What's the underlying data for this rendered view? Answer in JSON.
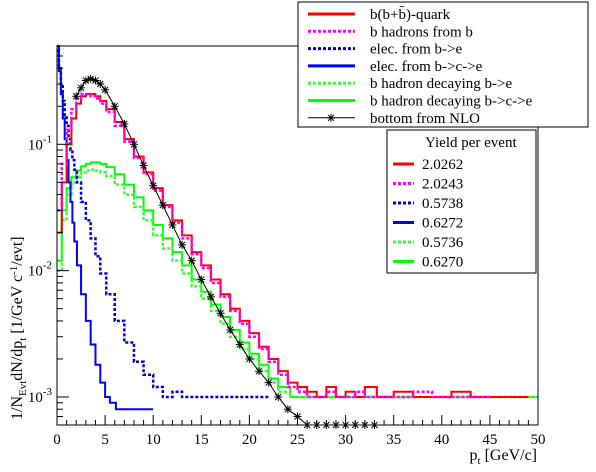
{
  "chart_data": {
    "type": "line",
    "xlabel": "p_t [GeV/c]",
    "ylabel": "1/N_Evt dN/dp_t [1/GeV c^-1/evt]",
    "xlim": [
      0,
      50
    ],
    "ylim": [
      0.0006,
      0.6
    ],
    "y_scale": "log",
    "grid": false,
    "x_ticks": [
      0,
      5,
      10,
      15,
      20,
      25,
      30,
      35,
      40,
      45,
      50
    ],
    "x_tick_labels": [
      "0",
      "5",
      "10",
      "15",
      "20",
      "25",
      "30",
      "35",
      "40",
      "45",
      "50"
    ],
    "y_tick_labels": [
      {
        "value": 0.1,
        "label": "10^-1"
      },
      {
        "value": 0.01,
        "label": "10^-2"
      },
      {
        "value": 0.001,
        "label": "10^-3"
      }
    ],
    "legend_placement": "top-right",
    "yield_header": "Yield per event",
    "series": [
      {
        "name": "b(b+b̄)-quark",
        "color": "#ff0000",
        "style": "solid",
        "yield": "2.0262",
        "x": [
          0.25,
          0.75,
          1.25,
          1.75,
          2.25,
          2.75,
          3.25,
          3.75,
          4.25,
          4.75,
          5.5,
          6.5,
          7.5,
          8.5,
          9.5,
          10.5,
          11.5,
          12.5,
          13.5,
          14.5,
          15.5,
          16.5,
          17.5,
          18.5,
          19.5,
          20.5,
          21.5,
          22.5,
          23.5,
          24.5,
          25.5,
          26.5,
          27.5,
          28.5,
          29.5,
          30.5,
          31.5,
          32.5,
          34,
          36,
          38,
          40,
          42,
          44,
          46,
          48
        ],
        "y": [
          0.02,
          0.05,
          0.1,
          0.16,
          0.21,
          0.24,
          0.25,
          0.25,
          0.24,
          0.22,
          0.19,
          0.15,
          0.11,
          0.08,
          0.06,
          0.045,
          0.033,
          0.025,
          0.019,
          0.014,
          0.011,
          0.0085,
          0.0065,
          0.005,
          0.004,
          0.0032,
          0.0025,
          0.002,
          0.0016,
          0.0013,
          0.0012,
          0.0011,
          0.001,
          0.0012,
          0.001,
          0.0011,
          0.001,
          0.0012,
          0.001,
          0.0011,
          0.001,
          0.001,
          0.0011,
          0.001,
          0.001,
          0.001
        ]
      },
      {
        "name": "b hadrons from b",
        "color": "#ff00ff",
        "style": "dotted",
        "yield": "2.0243",
        "x": [
          0.25,
          0.75,
          1.25,
          1.75,
          2.25,
          2.75,
          3.25,
          3.75,
          4.25,
          4.75,
          5.5,
          6.5,
          7.5,
          8.5,
          9.5,
          10.5,
          11.5,
          12.5,
          13.5,
          14.5,
          15.5,
          16.5,
          17.5,
          18.5,
          19.5,
          20.5,
          21.5,
          22.5,
          23.5,
          24.5,
          25.5,
          26.5,
          27.5,
          28.5,
          29.5,
          30.5,
          31.5,
          32.5,
          34,
          36,
          38,
          40,
          42,
          44
        ],
        "y": [
          0.03,
          0.07,
          0.13,
          0.19,
          0.23,
          0.25,
          0.25,
          0.24,
          0.23,
          0.21,
          0.18,
          0.14,
          0.105,
          0.078,
          0.058,
          0.043,
          0.032,
          0.024,
          0.018,
          0.0135,
          0.0105,
          0.008,
          0.0062,
          0.0048,
          0.0038,
          0.003,
          0.0024,
          0.0019,
          0.0015,
          0.0012,
          0.0011,
          0.001,
          0.001,
          0.0011,
          0.001,
          0.001,
          0.0011,
          0.001,
          0.001,
          0.001,
          0.0011,
          0.001,
          0.001,
          0.001
        ]
      },
      {
        "name": "elec. from b->e",
        "color": "#0000cc",
        "style": "dotted",
        "yield": "0.5738",
        "x": [
          0.1,
          0.3,
          0.5,
          0.7,
          0.9,
          1.1,
          1.3,
          1.5,
          1.7,
          1.9,
          2.25,
          2.75,
          3.25,
          3.75,
          4.25,
          4.75,
          5.5,
          6.5,
          7.5,
          8.5,
          9.5,
          10.5,
          11.5,
          12.5,
          13.5,
          14.5,
          15.5,
          17,
          19,
          21
        ],
        "y": [
          0.55,
          0.4,
          0.3,
          0.22,
          0.17,
          0.14,
          0.11,
          0.09,
          0.075,
          0.063,
          0.05,
          0.035,
          0.025,
          0.018,
          0.013,
          0.0095,
          0.0065,
          0.004,
          0.0027,
          0.0019,
          0.0015,
          0.0012,
          0.001,
          0.0011,
          0.001,
          0.001,
          0.001,
          0.001,
          0.001,
          0.001
        ]
      },
      {
        "name": "elec. from b->c->e",
        "color": "#0000ff",
        "style": "solid",
        "yield": "0.6272",
        "x": [
          0.1,
          0.3,
          0.5,
          0.7,
          0.9,
          1.1,
          1.3,
          1.5,
          1.7,
          1.9,
          2.25,
          2.75,
          3.25,
          3.75,
          4.25,
          4.75,
          5.25,
          5.75,
          6.5,
          7.5,
          8.5,
          9.5
        ],
        "y": [
          0.6,
          0.38,
          0.25,
          0.16,
          0.11,
          0.075,
          0.05,
          0.035,
          0.024,
          0.017,
          0.011,
          0.0065,
          0.004,
          0.0026,
          0.0018,
          0.0013,
          0.001,
          0.0009,
          0.0008,
          0.0008,
          0.0008,
          0.0008
        ]
      },
      {
        "name": "b hadron decaying b->e",
        "color": "#33ff33",
        "style": "dotted",
        "yield": "0.5736",
        "x": [
          0.25,
          0.75,
          1.25,
          1.75,
          2.25,
          2.75,
          3.25,
          3.75,
          4.25,
          4.75,
          5.5,
          6.5,
          7.5,
          8.5,
          9.5,
          10.5,
          11.5,
          12.5,
          13.5,
          14.5,
          15.5,
          16.5,
          17.5,
          18.5,
          19.5,
          20.5,
          21.5,
          22.5,
          23.5,
          25,
          27,
          29,
          31,
          33,
          35,
          37,
          39,
          41,
          43,
          45,
          47,
          49
        ],
        "y": [
          0.01,
          0.025,
          0.04,
          0.05,
          0.055,
          0.06,
          0.062,
          0.063,
          0.062,
          0.06,
          0.056,
          0.048,
          0.04,
          0.032,
          0.025,
          0.019,
          0.015,
          0.012,
          0.0095,
          0.0075,
          0.006,
          0.0048,
          0.0038,
          0.003,
          0.0024,
          0.002,
          0.0016,
          0.0013,
          0.0011,
          0.001,
          0.001,
          0.001,
          0.001,
          0.001,
          0.001,
          0.001,
          0.001,
          0.001,
          0.001,
          0.001,
          0.001,
          0.001
        ]
      },
      {
        "name": "b hadron decaying b->c->e",
        "color": "#00ff00",
        "style": "solid",
        "yield": "0.6270",
        "x": [
          0.25,
          0.75,
          1.25,
          1.75,
          2.25,
          2.75,
          3.25,
          3.75,
          4.25,
          4.75,
          5.5,
          6.5,
          7.5,
          8.5,
          9.5,
          10.5,
          11.5,
          12.5,
          13.5,
          14.5,
          15.5,
          16.5,
          17.5,
          18.5,
          19.5,
          20.5,
          21.5,
          22.5,
          23.5,
          25,
          27,
          29,
          31,
          33,
          35,
          37,
          39,
          41,
          43,
          45,
          47,
          49
        ],
        "y": [
          0.012,
          0.03,
          0.045,
          0.055,
          0.062,
          0.067,
          0.07,
          0.072,
          0.072,
          0.07,
          0.066,
          0.058,
          0.048,
          0.038,
          0.03,
          0.023,
          0.018,
          0.014,
          0.011,
          0.0085,
          0.0068,
          0.0054,
          0.0043,
          0.0034,
          0.0027,
          0.0022,
          0.0018,
          0.0014,
          0.0012,
          0.001,
          0.001,
          0.001,
          0.001,
          0.001,
          0.001,
          0.001,
          0.001,
          0.001,
          0.001,
          0.001,
          0.001,
          0.001
        ]
      },
      {
        "name": "bottom from NLO",
        "color": "#000000",
        "style": "markers",
        "yield": "",
        "x": [
          2,
          2.5,
          3,
          3.5,
          4,
          4.5,
          5,
          6,
          7,
          8,
          9,
          10,
          11,
          12,
          13,
          14,
          15,
          16,
          17,
          18,
          19,
          20,
          21,
          22,
          23,
          24,
          25,
          26,
          27,
          28,
          29,
          30,
          31,
          32,
          33
        ],
        "y": [
          0.24,
          0.28,
          0.32,
          0.33,
          0.32,
          0.3,
          0.27,
          0.2,
          0.145,
          0.1,
          0.068,
          0.047,
          0.033,
          0.023,
          0.016,
          0.012,
          0.0085,
          0.0062,
          0.0046,
          0.0034,
          0.0026,
          0.002,
          0.0016,
          0.0013,
          0.001,
          0.0008,
          0.0007,
          0.0006,
          0.0006,
          0.0006,
          0.0006,
          0.0006,
          0.0006,
          0.0006,
          0.0006
        ]
      }
    ]
  }
}
